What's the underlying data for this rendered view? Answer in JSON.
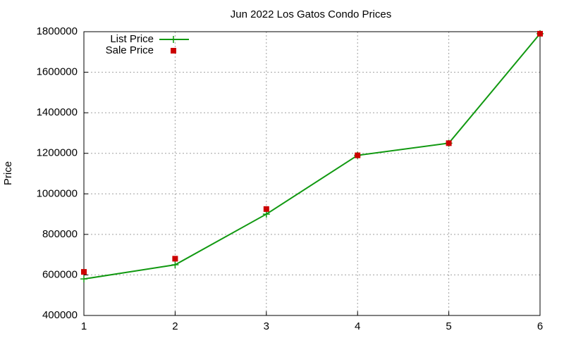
{
  "chart_data": {
    "type": "line",
    "title": "Jun 2022 Los Gatos Condo Prices",
    "ylabel": "Price",
    "x": [
      1,
      2,
      3,
      4,
      5,
      6
    ],
    "series": [
      {
        "name": "List Price",
        "color": "#119911",
        "style": "linespoints",
        "values": [
          580000,
          650000,
          900000,
          1190000,
          1250000,
          1790000
        ]
      },
      {
        "name": "Sale Price",
        "color": "#cc0000",
        "style": "points",
        "values": [
          615000,
          680000,
          925000,
          1190000,
          1250000,
          1790000
        ]
      }
    ],
    "xlim": [
      1,
      6
    ],
    "xticks": [
      1,
      2,
      3,
      4,
      5,
      6
    ],
    "ylim": [
      400000,
      1800000
    ],
    "yticks": [
      400000,
      600000,
      800000,
      1000000,
      1200000,
      1400000,
      1600000,
      1800000
    ],
    "grid": true,
    "legend": "top-left"
  }
}
